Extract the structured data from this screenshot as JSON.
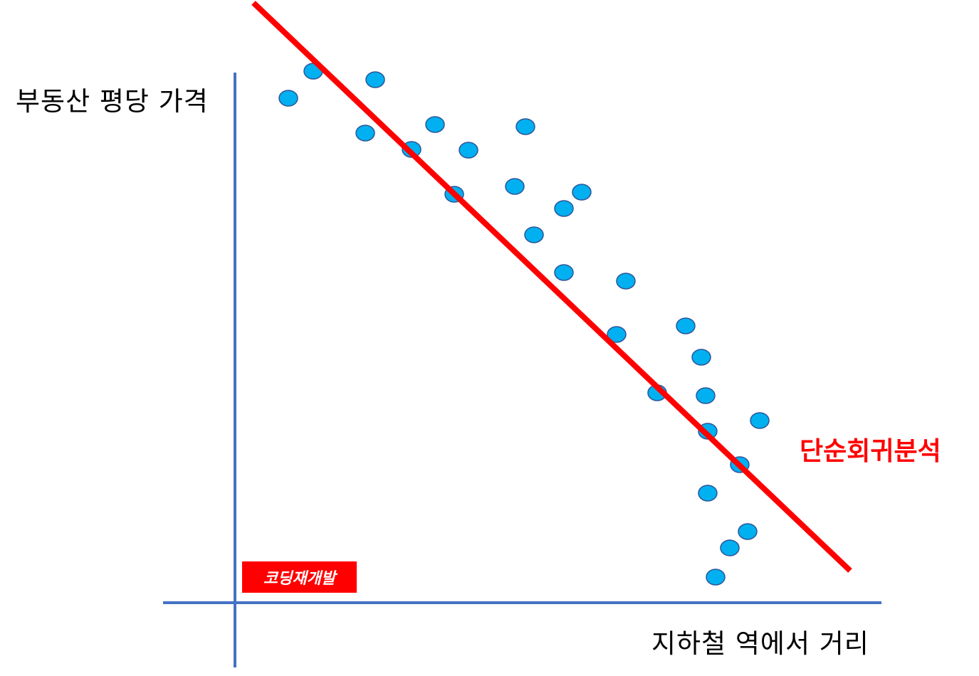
{
  "diagram": {
    "ylabel": "부동산 평당 가격",
    "xlabel": "지하철 역에서 거리",
    "regression_label": "단순회귀분석",
    "badge": "코딩재개발",
    "colors": {
      "axis": "#4472c4",
      "line": "#ff0000",
      "point_fill": "#00b0f0",
      "point_stroke": "#2e5597",
      "badge_bg": "#ff0000"
    }
  }
}
